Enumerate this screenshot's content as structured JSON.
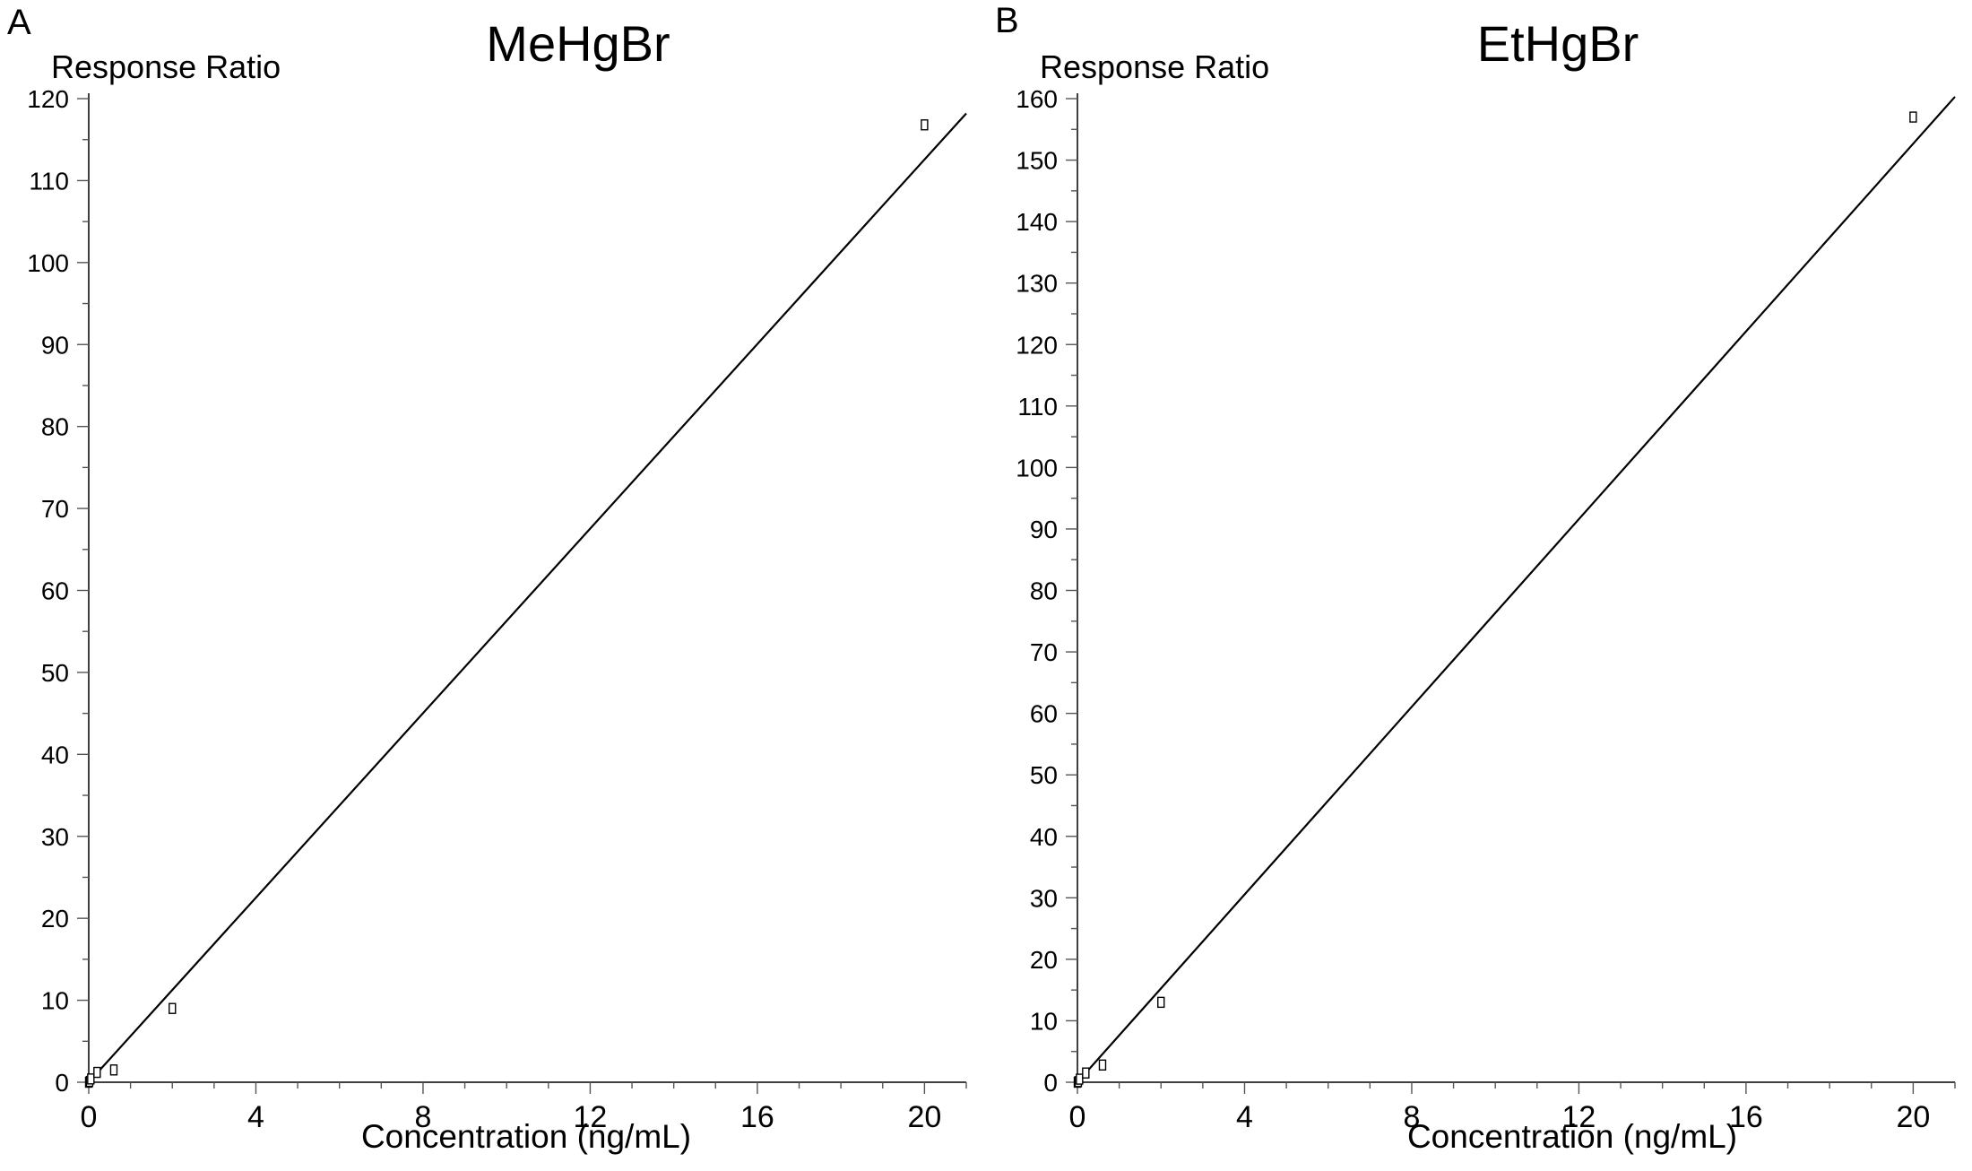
{
  "panels": [
    {
      "letter": "A",
      "chart_data": {
        "type": "scatter",
        "title": "MeHgBr",
        "xlabel": "Concentration (ng/mL)",
        "ylabel": "Response Ratio",
        "xlim": [
          0,
          21
        ],
        "ylim": [
          0,
          120
        ],
        "x_ticks": [
          0,
          4,
          8,
          12,
          16,
          20
        ],
        "x_tick_labels": [
          "0",
          "4",
          "8",
          "12",
          "16",
          "20"
        ],
        "y_ticks": [
          0,
          10,
          20,
          30,
          40,
          50,
          60,
          70,
          80,
          90,
          100,
          110,
          120
        ],
        "y_tick_labels": [
          "0",
          "10",
          "20",
          "30",
          "40",
          "50",
          "60",
          "70",
          "80",
          "90",
          "100",
          "110",
          "120"
        ],
        "y_minor_step": 5,
        "x_minor_step": 1,
        "grid": false,
        "series": [
          {
            "type": "scatter",
            "marker": "open-square",
            "x": [
              0.0,
              0.02,
              0.05,
              0.2,
              0.6,
              2.0,
              20.0
            ],
            "y": [
              0.0,
              0.1,
              0.4,
              1.2,
              1.5,
              9.0,
              116.8
            ]
          }
        ],
        "fit_line": {
          "x": [
            0,
            21
          ],
          "y": [
            0,
            118.2
          ]
        },
        "colors": {
          "line": "#000000",
          "marker": "#000000"
        }
      }
    },
    {
      "letter": "B",
      "chart_data": {
        "type": "scatter",
        "title": "EtHgBr",
        "xlabel": "Concentration (ng/mL)",
        "ylabel": "Response Ratio",
        "xlim": [
          0,
          21
        ],
        "ylim": [
          0,
          160
        ],
        "x_ticks": [
          0,
          4,
          8,
          12,
          16,
          20
        ],
        "x_tick_labels": [
          "0",
          "4",
          "8",
          "12",
          "16",
          "20"
        ],
        "y_ticks": [
          0,
          10,
          20,
          30,
          40,
          50,
          60,
          70,
          80,
          90,
          100,
          110,
          120,
          130,
          140,
          150,
          160
        ],
        "y_tick_labels": [
          "0",
          "10",
          "20",
          "30",
          "40",
          "50",
          "60",
          "70",
          "80",
          "90",
          "100",
          "110",
          "120",
          "130",
          "140",
          "150",
          "160"
        ],
        "y_minor_step": 5,
        "x_minor_step": 1,
        "grid": false,
        "series": [
          {
            "type": "scatter",
            "marker": "open-square",
            "x": [
              0.0,
              0.02,
              0.05,
              0.2,
              0.6,
              2.0,
              20.0
            ],
            "y": [
              0.0,
              0.1,
              0.5,
              1.5,
              2.8,
              13.0,
              157.0
            ]
          }
        ],
        "fit_line": {
          "x": [
            0,
            21
          ],
          "y": [
            0,
            160.3
          ]
        },
        "colors": {
          "line": "#000000",
          "marker": "#000000"
        }
      }
    }
  ]
}
